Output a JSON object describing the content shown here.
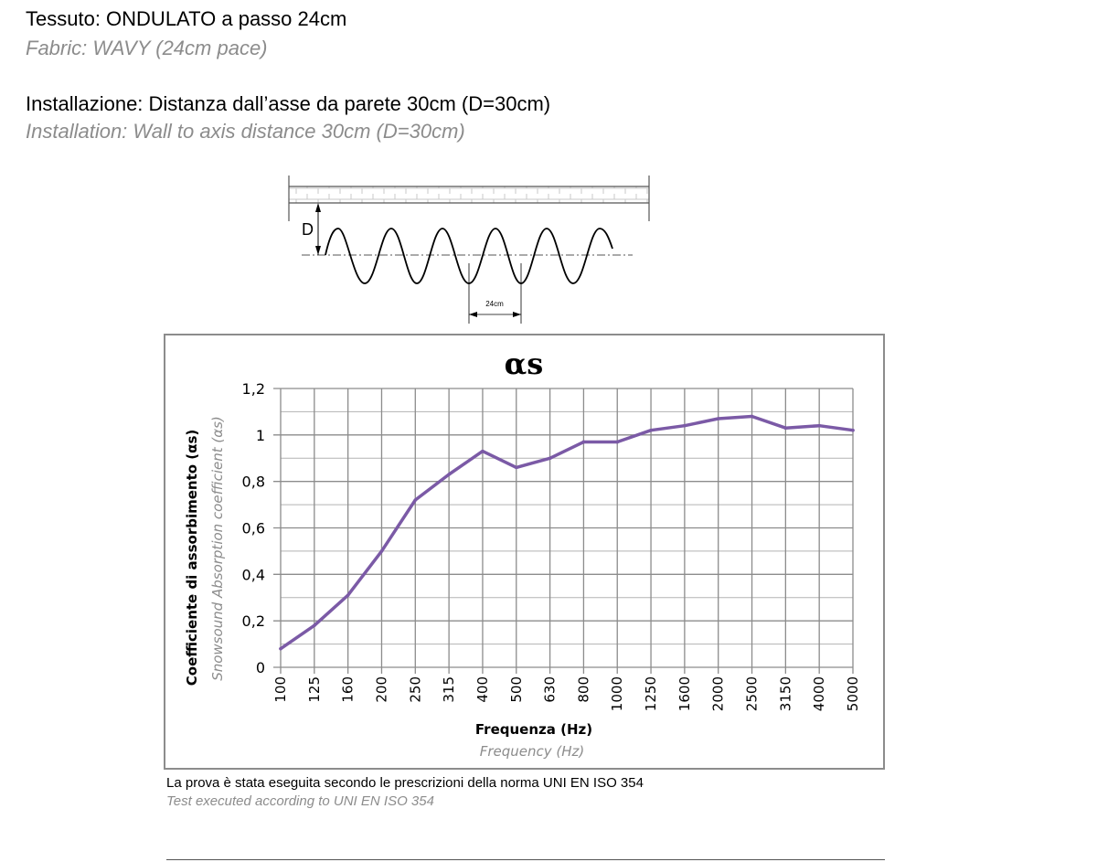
{
  "header": {
    "fabric_it": "Tessuto: ONDULATO a passo 24cm",
    "fabric_en": "Fabric: WAVY (24cm pace)",
    "install_it": "Installazione: Distanza dall’asse da parete 30cm (D=30cm)",
    "install_en": "Installation: Wall to axis distance 30cm (D=30cm)"
  },
  "diagram": {
    "d_label": "D",
    "pitch_label": "24cm"
  },
  "chart_data": {
    "type": "line",
    "title": "αs",
    "ylabel": "Coefficiente di assorbimento (αs)",
    "ylabel_en": "Snowsound Absorption coefficient (αs)",
    "xlabel": "Frequenza (Hz)",
    "xlabel_en": "Frequency (Hz)",
    "categories": [
      "100",
      "125",
      "160",
      "200",
      "250",
      "315",
      "400",
      "500",
      "630",
      "800",
      "1000",
      "1250",
      "1600",
      "2000",
      "2500",
      "3150",
      "4000",
      "5000"
    ],
    "y_ticks": [
      "0",
      "0,2",
      "0,4",
      "0,6",
      "0,8",
      "1",
      "1,2"
    ],
    "ylim": [
      0,
      1.2
    ],
    "grid": true,
    "color": "#7b5aa6",
    "series": [
      {
        "values": [
          0.08,
          0.18,
          0.31,
          0.5,
          0.72,
          0.83,
          0.93,
          0.86,
          0.9,
          0.97,
          0.97,
          1.02,
          1.04,
          1.07,
          1.08,
          1.03,
          1.04,
          1.02
        ]
      }
    ]
  },
  "footer": {
    "note_it": "La prova è stata eseguita secondo le prescrizioni della norma UNI EN ISO 354",
    "note_en": "Test executed according  to UNI EN ISO 354"
  }
}
